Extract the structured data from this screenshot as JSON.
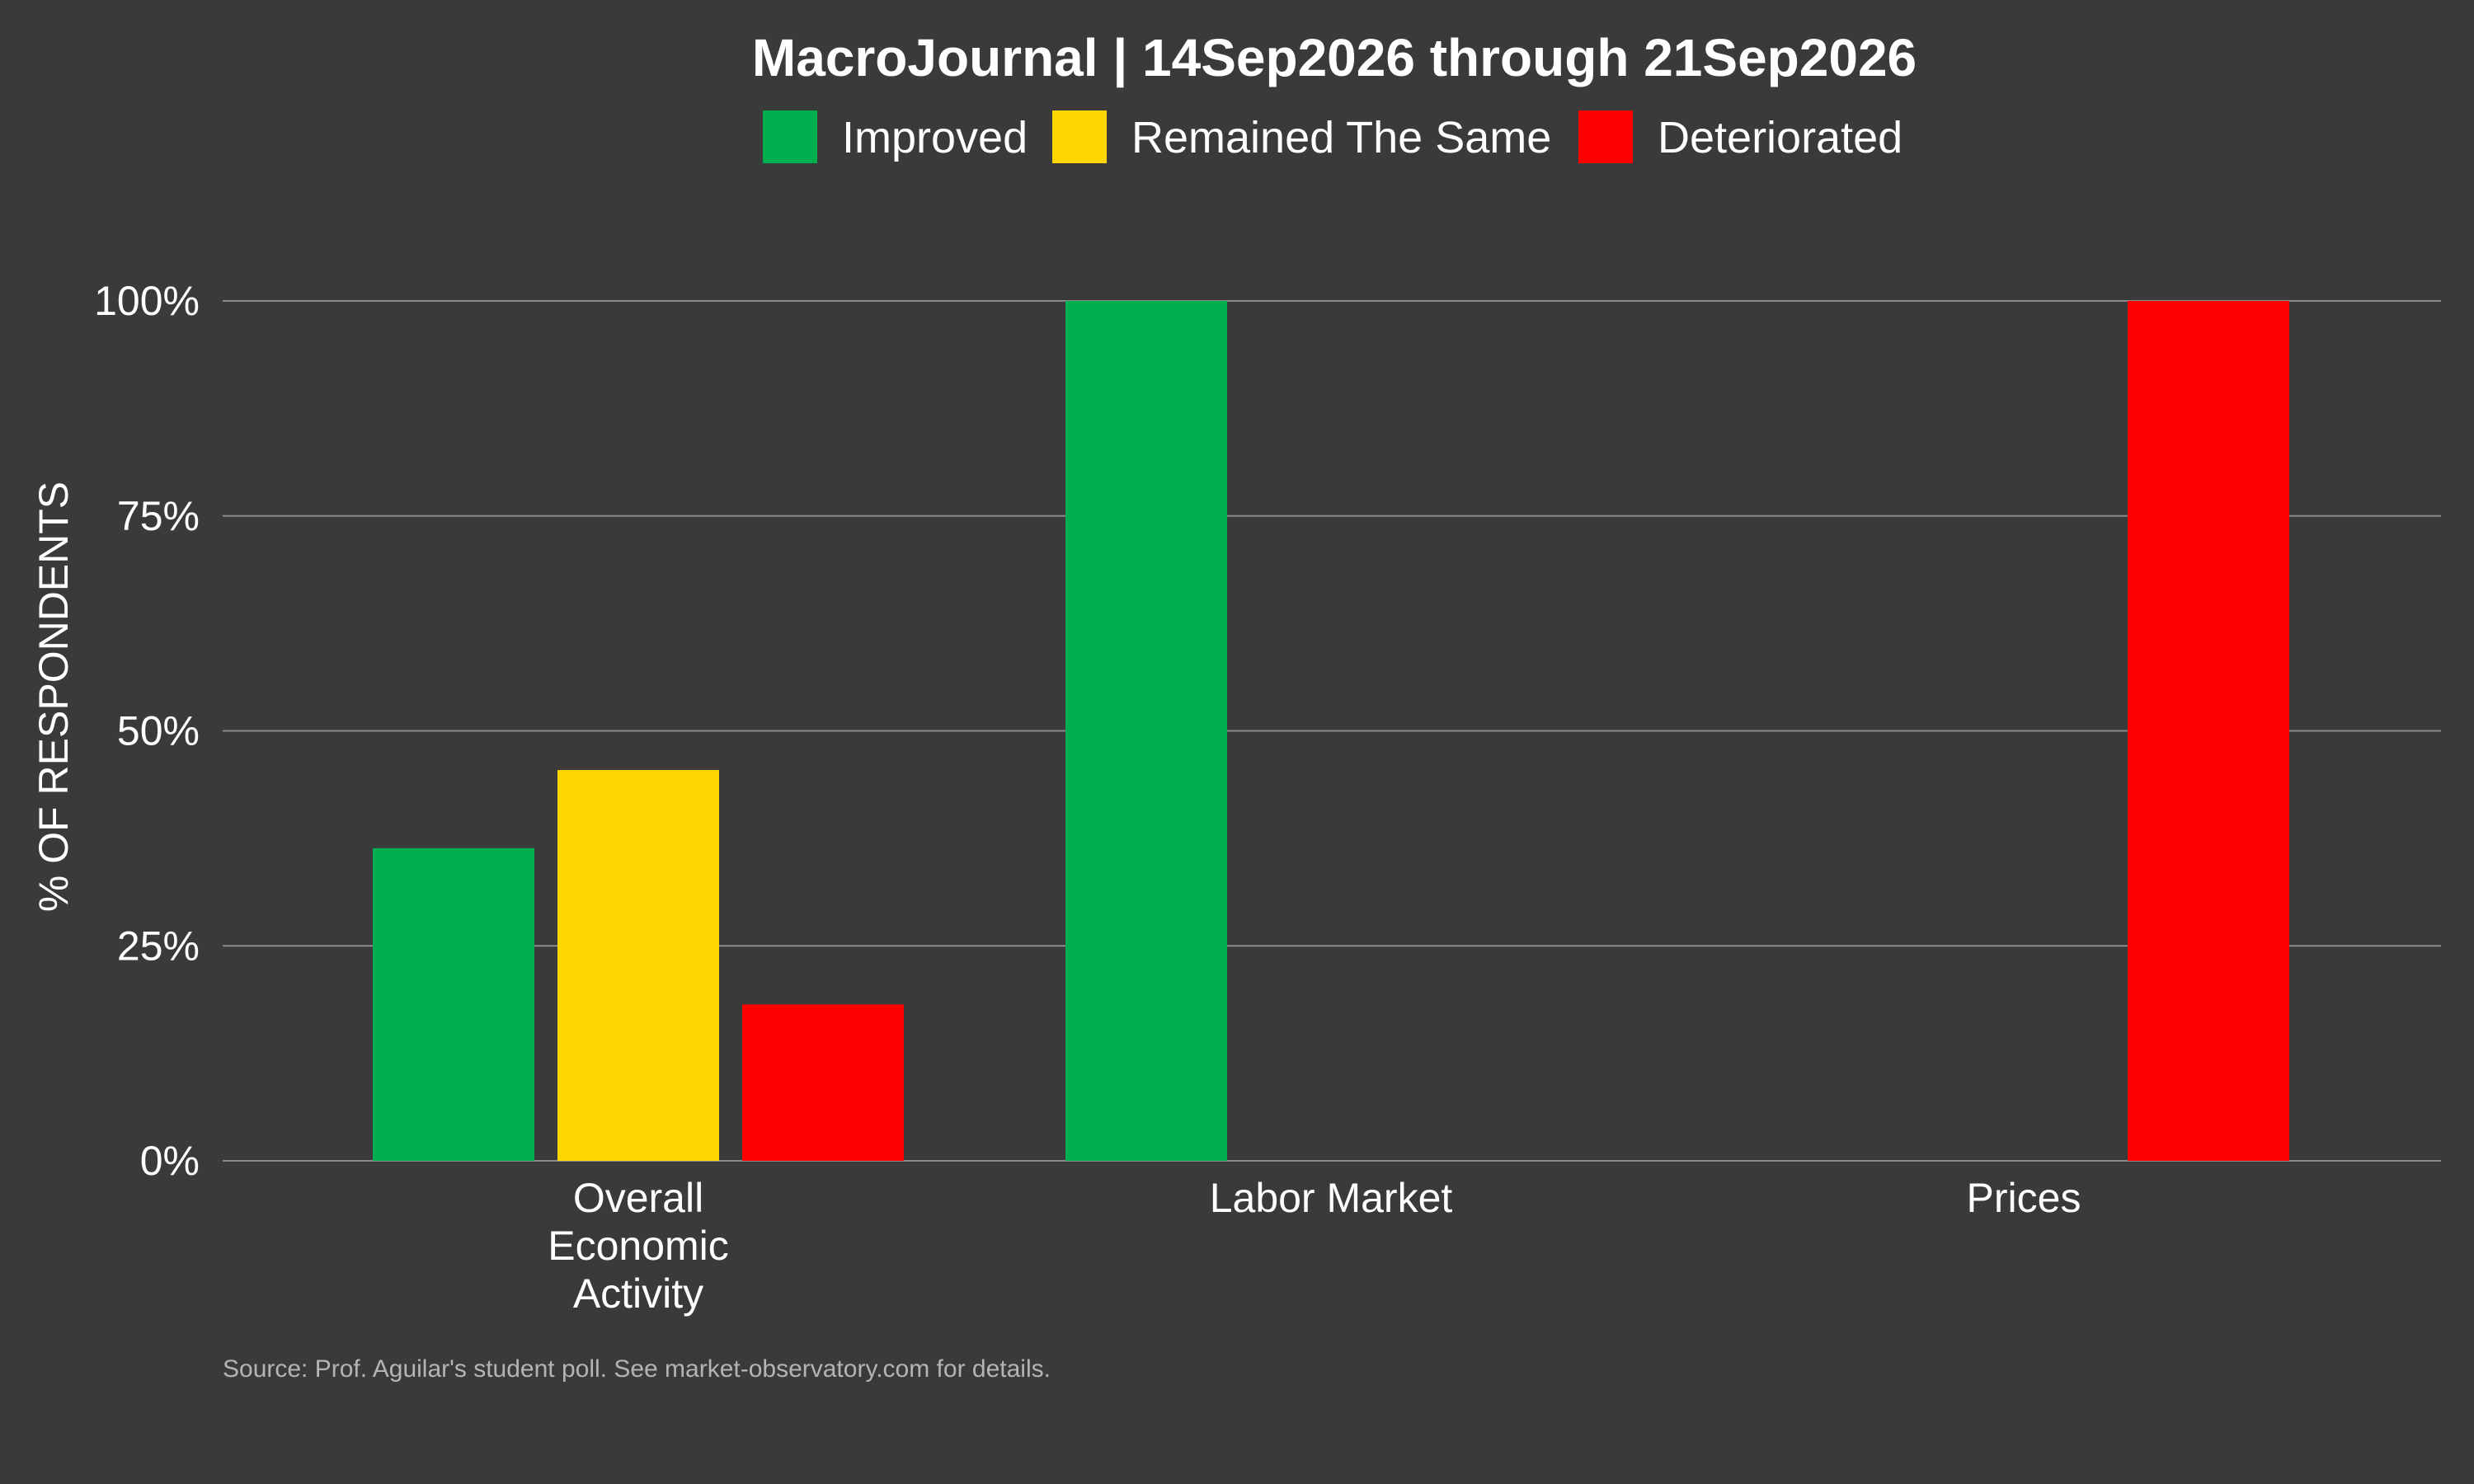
{
  "chart_data": {
    "type": "bar",
    "title": "MacroJournal | 14Sep2026 through 21Sep2026",
    "ylabel": "% OF RESPONDENTS",
    "xlabel": "",
    "ylim": [
      0,
      1
    ],
    "yticks": [
      0,
      0.25,
      0.5,
      0.75,
      1
    ],
    "ytick_labels": [
      "0%",
      "25%",
      "50%",
      "75%",
      "100%"
    ],
    "categories": [
      [
        "Overall",
        "Economic",
        "Activity"
      ],
      [
        "Labor Market"
      ],
      [
        "Prices"
      ]
    ],
    "series": [
      {
        "name": "Improved",
        "color": "#00b050",
        "values": [
          0.3636,
          1.0,
          0
        ]
      },
      {
        "name": "Remained The Same",
        "color": "#ffd700",
        "values": [
          0.4545,
          0,
          0
        ]
      },
      {
        "name": "Deteriorated",
        "color": "#ff0000",
        "values": [
          0.1818,
          0,
          1.0
        ]
      }
    ],
    "grid": true,
    "legend_position": "top"
  },
  "source_note": "Source: Prof. Aguilar's student poll.  See market-observatory.com for details.",
  "colors": {
    "background": "#3a3a3a",
    "gridline": "#8a8a8a",
    "text": "#ffffff",
    "source_text": "#b4b4b4"
  }
}
